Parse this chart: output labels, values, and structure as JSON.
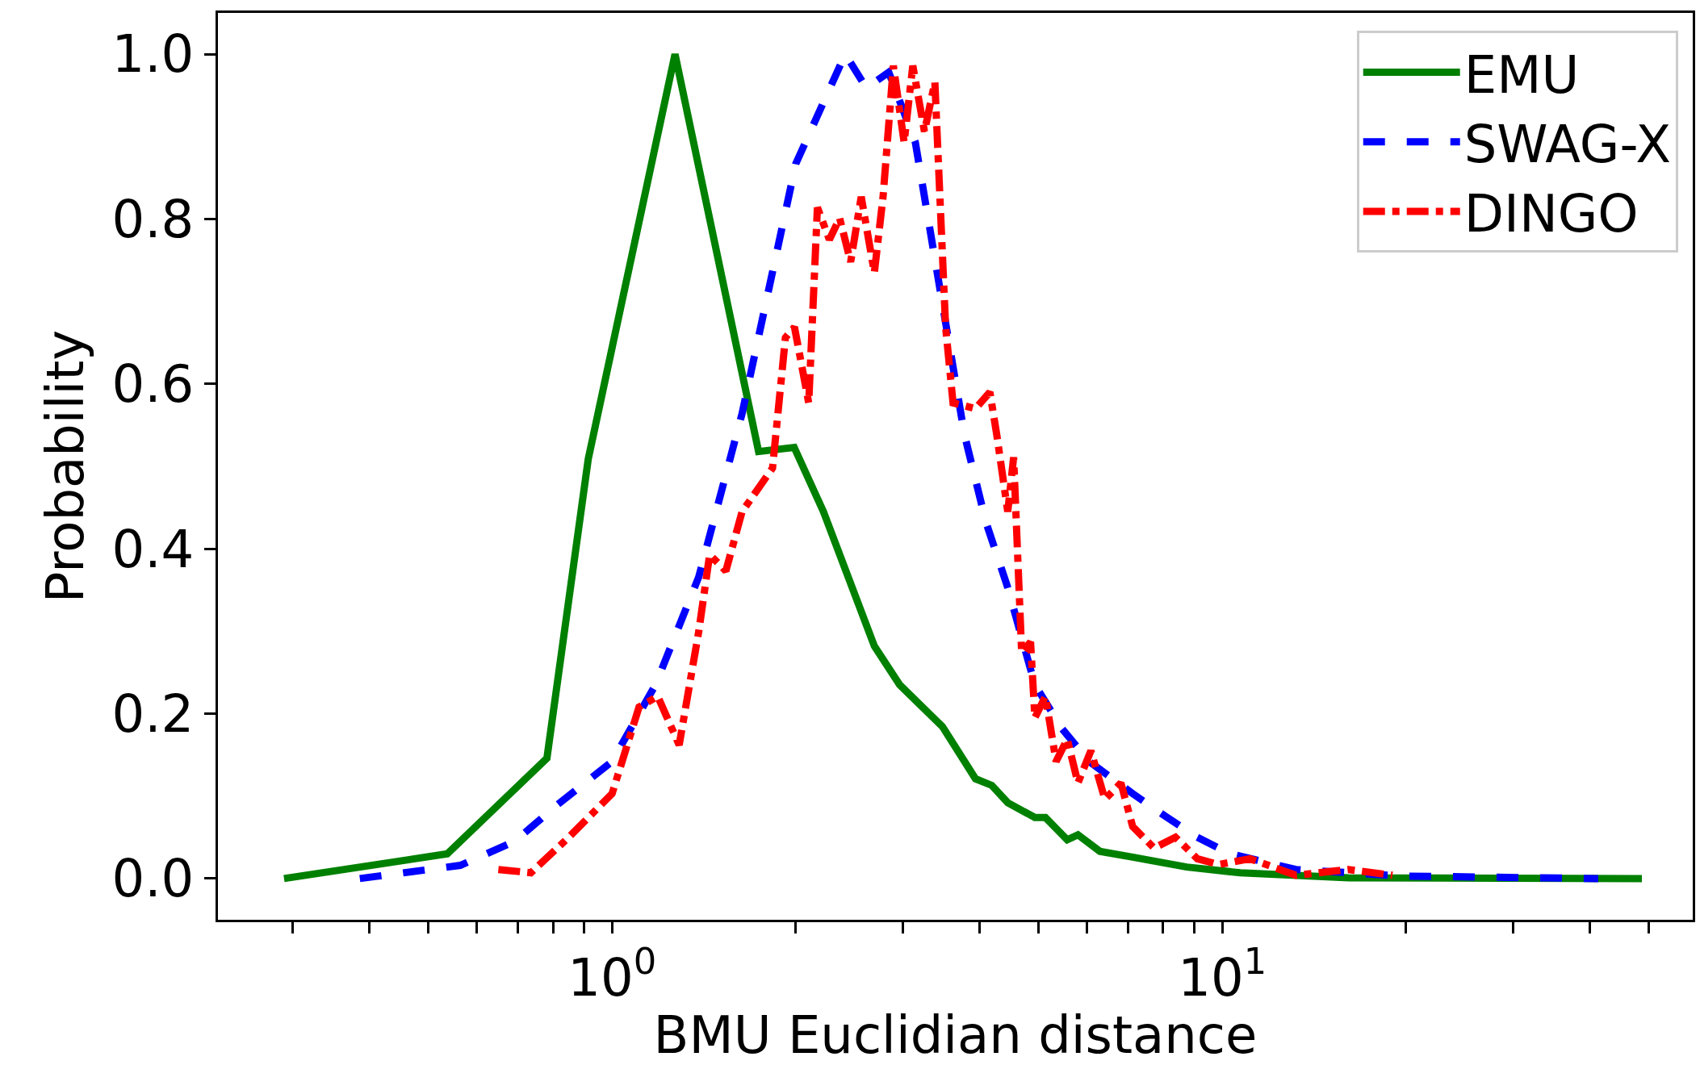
{
  "chart_data": {
    "type": "line",
    "xlabel": "BMU Euclidian distance",
    "ylabel": "Probability",
    "log": "x",
    "xlim": [
      0.226,
      59
    ],
    "ylim": [
      -0.05,
      1.05
    ],
    "xticks": [
      {
        "value": 0.3,
        "label": null
      },
      {
        "value": 0.4,
        "label": null
      },
      {
        "value": 0.5,
        "label": null
      },
      {
        "value": 0.6,
        "label": null
      },
      {
        "value": 0.7,
        "label": null
      },
      {
        "value": 0.8,
        "label": null
      },
      {
        "value": 0.9,
        "label": null
      },
      {
        "value": 1,
        "label": "10$^{0}$"
      },
      {
        "value": 2,
        "label": null
      },
      {
        "value": 3,
        "label": null
      },
      {
        "value": 4,
        "label": null
      },
      {
        "value": 5,
        "label": null
      },
      {
        "value": 6,
        "label": null
      },
      {
        "value": 7,
        "label": null
      },
      {
        "value": 8,
        "label": null
      },
      {
        "value": 9,
        "label": null
      },
      {
        "value": 10,
        "label": "10$^{1}$"
      },
      {
        "value": 20,
        "label": null
      },
      {
        "value": 30,
        "label": null
      },
      {
        "value": 40,
        "label": null
      },
      {
        "value": 50,
        "label": null
      }
    ],
    "yticks": [
      {
        "value": 0,
        "label": "0.0"
      },
      {
        "value": 0.2,
        "label": "0.2"
      },
      {
        "value": 0.4,
        "label": "0.4"
      },
      {
        "value": 0.6,
        "label": "0.6"
      },
      {
        "value": 0.8,
        "label": "0.8"
      },
      {
        "value": 1,
        "label": "1.0"
      }
    ],
    "legend": "top right",
    "series": [
      {
        "name": "EMU",
        "color": "#008000",
        "line_style": "solid",
        "x": [
          0.29,
          0.537,
          0.782,
          0.914,
          1.268,
          1.738,
          1.988,
          2.22,
          2.69,
          2.96,
          3.48,
          3.94,
          4.19,
          4.45,
          4.93,
          5.13,
          5.57,
          5.8,
          6.3,
          7.13,
          8.74,
          10.7,
          16.1,
          48.7
        ],
        "values": [
          0.0,
          0.03,
          0.146,
          0.509,
          1.0,
          0.518,
          0.523,
          0.445,
          0.282,
          0.235,
          0.184,
          0.121,
          0.113,
          0.092,
          0.074,
          0.074,
          0.047,
          0.053,
          0.033,
          0.026,
          0.014,
          0.007,
          0.001,
          0.0
        ]
      },
      {
        "name": "SWAG-X",
        "color": "#0000ff",
        "line_style": "dashed",
        "x": [
          0.386,
          0.564,
          0.692,
          0.815,
          1.0,
          1.178,
          1.387,
          1.633,
          2.0,
          2.41,
          2.61,
          2.84,
          3.14,
          3.48,
          3.78,
          4.1,
          4.45,
          4.93,
          5.46,
          6.05,
          7.13,
          8.05,
          9.1,
          10.3,
          13.2,
          19.8,
          41.3
        ],
        "values": [
          0.0,
          0.016,
          0.045,
          0.09,
          0.142,
          0.235,
          0.366,
          0.564,
          0.867,
          1.0,
          0.959,
          0.978,
          0.893,
          0.696,
          0.538,
          0.432,
          0.353,
          0.235,
          0.182,
          0.142,
          0.103,
          0.076,
          0.05,
          0.03,
          0.011,
          0.003,
          0.0
        ]
      },
      {
        "name": "DINGO",
        "color": "#ff0000",
        "line_style": "dashdot",
        "x": [
          0.651,
          0.736,
          0.849,
          1.0,
          1.107,
          1.188,
          1.288,
          1.387,
          1.445,
          1.536,
          1.633,
          1.832,
          1.923,
          1.99,
          2.1,
          2.17,
          2.27,
          2.36,
          2.46,
          2.56,
          2.69,
          2.78,
          2.89,
          3.01,
          3.11,
          3.25,
          3.38,
          3.52,
          3.62,
          3.94,
          4.16,
          4.27,
          4.45,
          4.55,
          4.69,
          4.85,
          4.93,
          5.13,
          5.34,
          5.57,
          5.8,
          6.09,
          6.42,
          6.82,
          7.13,
          7.73,
          8.38,
          9.1,
          9.87,
          11.1,
          13.2,
          16.1,
          19.0
        ],
        "values": [
          0.011,
          0.007,
          0.05,
          0.103,
          0.208,
          0.221,
          0.162,
          0.3,
          0.393,
          0.373,
          0.445,
          0.498,
          0.656,
          0.669,
          0.577,
          0.814,
          0.775,
          0.801,
          0.748,
          0.827,
          0.735,
          0.827,
          0.986,
          0.893,
          0.986,
          0.906,
          0.966,
          0.669,
          0.577,
          0.57,
          0.59,
          0.538,
          0.445,
          0.511,
          0.274,
          0.287,
          0.195,
          0.221,
          0.142,
          0.169,
          0.116,
          0.155,
          0.096,
          0.116,
          0.063,
          0.037,
          0.05,
          0.024,
          0.017,
          0.024,
          0.004,
          0.011,
          0.004
        ]
      }
    ]
  }
}
